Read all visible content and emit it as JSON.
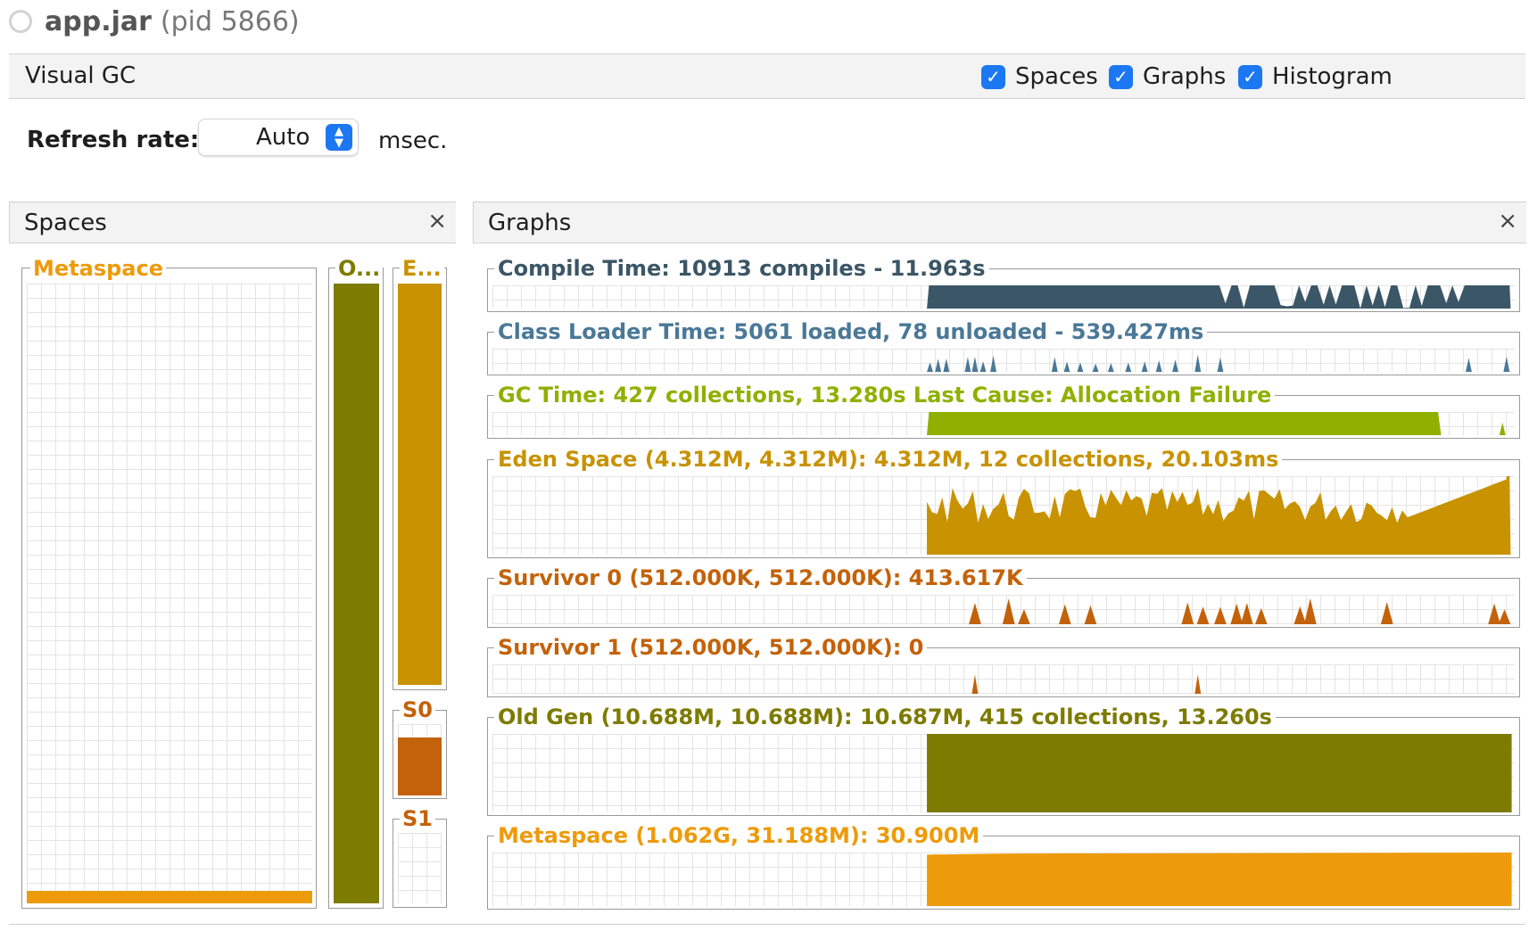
{
  "window": {
    "app_name": "app.jar",
    "pid_text": "(pid 5866)"
  },
  "toolbar": {
    "title": "Visual GC",
    "checkboxes": [
      {
        "label": "Spaces",
        "checked": true
      },
      {
        "label": "Graphs",
        "checked": true
      },
      {
        "label": "Histogram",
        "checked": true
      }
    ],
    "check_glyph": "✓"
  },
  "refresh": {
    "label": "Refresh rate:",
    "value": "Auto",
    "unit": "msec.",
    "arrow_up": "▲",
    "arrow_down": "▼"
  },
  "spaces_panel": {
    "title": "Spaces",
    "close": "×",
    "spaces": [
      {
        "label": "Metaspace",
        "color": "#ed9b0a",
        "fill_fraction": 0.02
      },
      {
        "label": "O...",
        "color": "#7d7b00",
        "fill_fraction": 1.0
      },
      {
        "label": "E...",
        "color": "#c89200",
        "fill_fraction": 1.0
      },
      {
        "label": "S0",
        "color": "#c3620a",
        "fill_fraction": 0.81
      },
      {
        "label": "S1",
        "color": "#c3620a",
        "fill_fraction": 0.0
      }
    ]
  },
  "graphs_panel": {
    "title": "Graphs",
    "close": "×",
    "graphs": [
      {
        "label": "Compile Time: 10913 compiles - 11.963s",
        "color": "#3b5666"
      },
      {
        "label": "Class Loader Time: 5061 loaded, 78 unloaded - 539.427ms",
        "color": "#4a7897"
      },
      {
        "label": "GC Time: 427 collections, 13.280s  Last Cause: Allocation Failure",
        "color": "#8fb000"
      },
      {
        "label": "Eden Space (4.312M, 4.312M): 4.312M, 12 collections, 20.103ms",
        "color": "#c89200"
      },
      {
        "label": "Survivor 0 (512.000K, 512.000K): 413.617K",
        "color": "#c3620a"
      },
      {
        "label": "Survivor 1 (512.000K, 512.000K): 0",
        "color": "#c3620a"
      },
      {
        "label": "Old Gen (10.688M, 10.688M): 10.687M, 415 collections, 13.260s",
        "color": "#7d7b00"
      },
      {
        "label": "Metaspace (1.062G, 31.188M): 30.900M",
        "color": "#ed9b0a"
      }
    ]
  }
}
